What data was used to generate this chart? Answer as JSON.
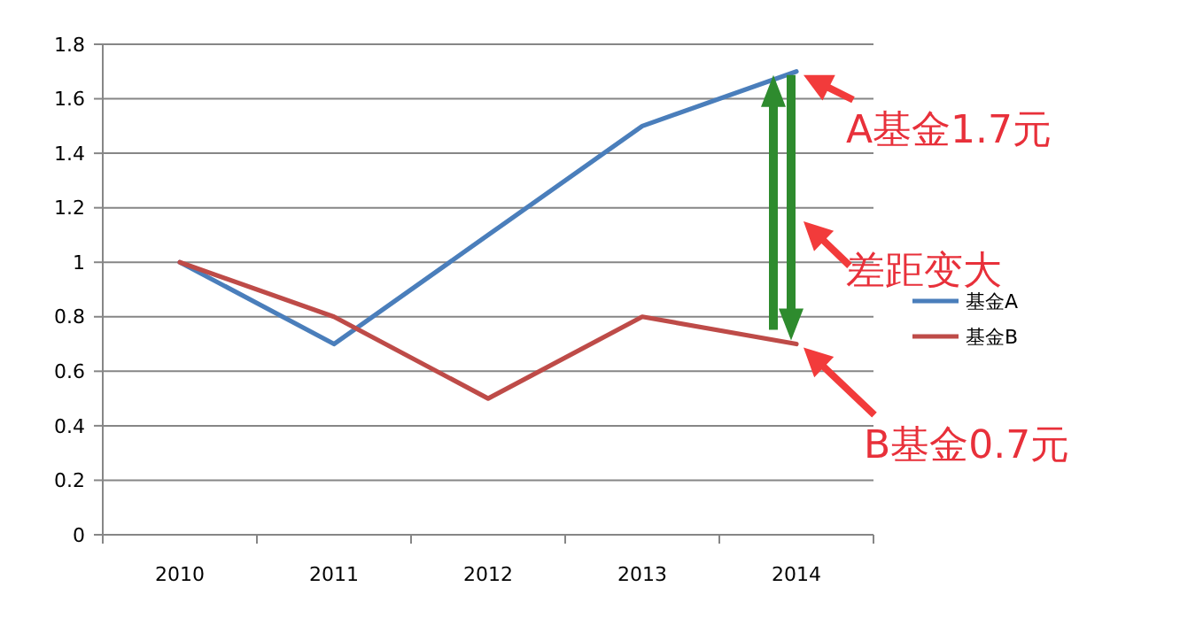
{
  "chart_data": {
    "type": "line",
    "categories": [
      "2010",
      "2011",
      "2012",
      "2013",
      "2014"
    ],
    "series": [
      {
        "name": "基金A",
        "color": "#4a7ebb",
        "values": [
          1,
          0.7,
          1.1,
          1.5,
          1.7
        ]
      },
      {
        "name": "基金B",
        "color": "#be4b48",
        "values": [
          1,
          0.8,
          0.5,
          0.8,
          0.7
        ]
      }
    ],
    "ylim": [
      0,
      1.8
    ],
    "yticks": [
      0,
      0.2,
      0.4,
      0.6,
      0.8,
      1,
      1.2,
      1.4,
      1.6,
      1.8
    ],
    "grid": "y",
    "legend": "right",
    "marker": "none",
    "line_style": "solid",
    "annotations": [
      {
        "text": "A基金1.7元",
        "x": "2014",
        "y": 1.7
      },
      "差距变大",
      {
        "text": "B基金0.7元",
        "x": "2014",
        "y": 0.7
      }
    ]
  }
}
